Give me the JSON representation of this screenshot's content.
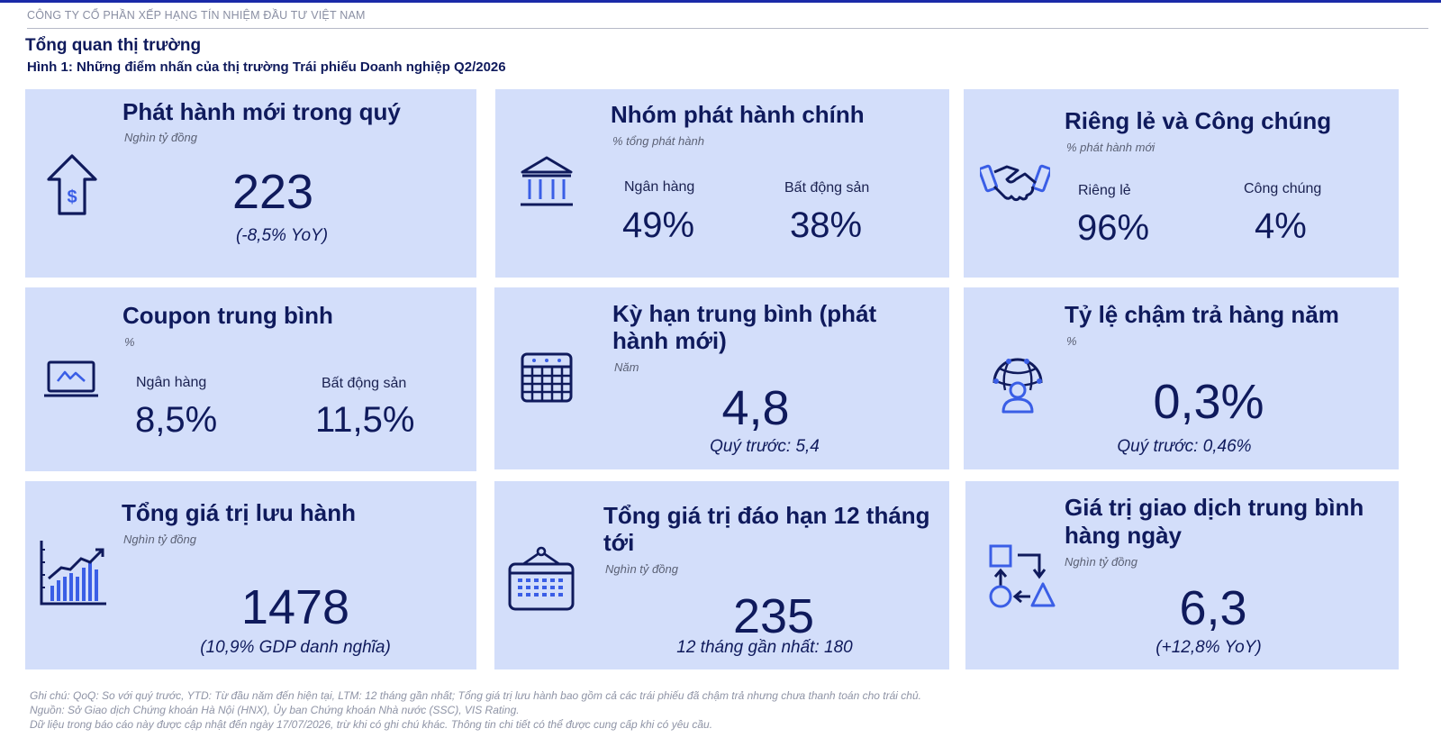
{
  "header": {
    "company": "CÔNG TY CỔ PHẦN XẾP HẠNG TÍN NHIỆM ĐẦU TƯ VIỆT NAM",
    "section_title": "Tổng quan thị trường",
    "figure_title": "Hình 1: Những điểm nhấn của thị trường Trái phiếu Doanh nghiệp Q2/2026"
  },
  "cards": {
    "new_issuance": {
      "title": "Phát hành mới trong quý",
      "unit": "Nghìn tỷ đồng",
      "value": "223",
      "sub": "(-8,5% YoY)",
      "icon": "arrow-up-dollar-icon"
    },
    "main_issuers": {
      "title": "Nhóm phát hành chính",
      "unit": "% tổng phát hành",
      "label1": "Ngân hàng",
      "value1": "49%",
      "label2": "Bất động sản",
      "value2": "38%",
      "icon": "bank-icon"
    },
    "private_public": {
      "title": "Riêng lẻ và Công chúng",
      "unit": "% phát hành mới",
      "label1": "Riêng lẻ",
      "value1": "96%",
      "label2": "Công chúng",
      "value2": "4%",
      "icon": "handshake-icon"
    },
    "avg_coupon": {
      "title": "Coupon trung bình",
      "unit": "%",
      "label1": "Ngân hàng",
      "value1": "8,5%",
      "label2": "Bất động sản",
      "value2": "11,5%",
      "icon": "laptop-chart-icon"
    },
    "avg_tenor": {
      "title_line1": "Kỳ hạn trung bình (phát",
      "title_line2": "hành mới)",
      "unit": "Năm",
      "value": "4,8",
      "sub": "Quý trước: 5,4",
      "icon": "calendar-icon"
    },
    "default_rate": {
      "title": "Tỷ lệ chậm trả hàng năm",
      "unit": "%",
      "value": "0,3%",
      "sub": "Quý trước: 0,46%",
      "icon": "globe-user-icon"
    },
    "outstanding": {
      "title": "Tổng giá trị lưu hành",
      "unit": "Nghìn tỷ đồng",
      "value": "1478",
      "sub": "(10,9% GDP danh nghĩa)",
      "icon": "growth-chart-icon"
    },
    "maturing": {
      "title_line1": "Tổng giá trị đáo hạn 12 tháng",
      "title_line2": "tới",
      "unit": "Nghìn tỷ đồng",
      "value": "235",
      "sub": "12 tháng gần nhất: 180",
      "icon": "calendar-hanging-icon"
    },
    "daily_trading": {
      "title_line1": "Giá trị giao dịch trung bình",
      "title_line2": "hàng ngày",
      "unit": "Nghìn tỷ đồng",
      "value": "6,3",
      "sub": "(+12,8% YoY)",
      "icon": "shapes-flow-icon"
    }
  },
  "notes": {
    "line1": "Ghi chú:  QoQ: So với quý trước, YTD: Từ đầu năm đến hiện tại, LTM: 12 tháng gần nhất; Tổng giá trị lưu hành bao gồm cả các trái phiếu đã chậm trả nhưng chưa thanh toán cho trái chủ.",
    "line2": "Nguồn: Sở Giao dịch Chứng khoán Hà Nội (HNX), Ủy ban Chứng khoán Nhà nước (SSC), VIS Rating.",
    "line3": "Dữ liệu trong báo cáo này được cập nhật đến ngày 17/07/2026, trừ khi có ghi chú khác. Thông tin chi tiết có thể được cung cấp khi có yêu cầu."
  },
  "colors": {
    "card_bg": "#d3defa",
    "navy": "#0f1a5c",
    "icon_blue": "#3a5ee6",
    "top_bar": "#1a2aa8"
  }
}
